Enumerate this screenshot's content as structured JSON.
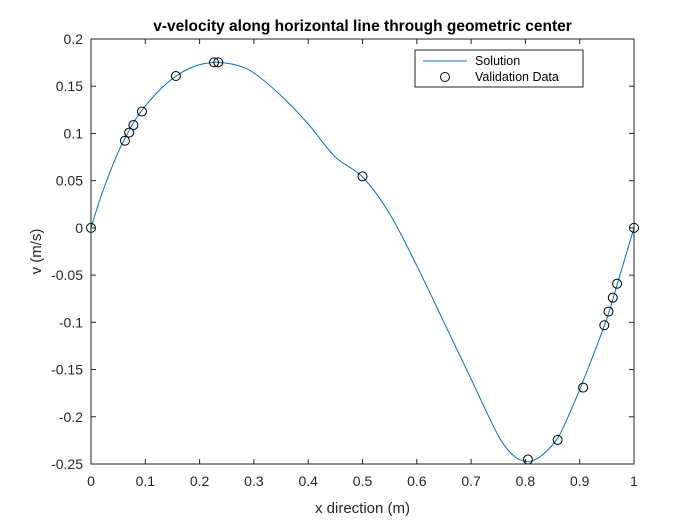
{
  "chart_data": {
    "type": "line",
    "title": "v-velocity along horizontal line through geometric center",
    "xlabel": "x direction (m)",
    "ylabel": "v (m/s)",
    "xlim": [
      0,
      1
    ],
    "ylim": [
      -0.25,
      0.2
    ],
    "x_ticks": [
      0,
      0.1,
      0.2,
      0.3,
      0.4,
      0.5,
      0.6,
      0.7,
      0.8,
      0.9,
      1
    ],
    "x_tick_labels": [
      "0",
      "0.1",
      "0.2",
      "0.3",
      "0.4",
      "0.5",
      "0.6",
      "0.7",
      "0.8",
      "0.9",
      "1"
    ],
    "y_ticks": [
      0.2,
      0.15,
      0.1,
      0.05,
      0,
      -0.05,
      -0.1,
      -0.15,
      -0.2,
      -0.25
    ],
    "y_tick_labels": [
      "0.2",
      "0.15",
      "0.1",
      "0.05",
      "0",
      "-0.05",
      "-0.1",
      "-0.15",
      "-0.2",
      "-0.25"
    ],
    "grid": false,
    "legend_position": "top-right",
    "series": [
      {
        "name": "Solution",
        "style": "line",
        "color": "#0072bd",
        "x": [
          0,
          0.02,
          0.05,
          0.08,
          0.1,
          0.13,
          0.16,
          0.19,
          0.22,
          0.24,
          0.27,
          0.3,
          0.35,
          0.4,
          0.45,
          0.5,
          0.55,
          0.6,
          0.65,
          0.7,
          0.75,
          0.78,
          0.8,
          0.81,
          0.83,
          0.86,
          0.89,
          0.92,
          0.95,
          0.97,
          1
        ],
        "y": [
          0,
          0.036,
          0.08,
          0.113,
          0.129,
          0.148,
          0.162,
          0.171,
          0.175,
          0.175,
          0.172,
          0.164,
          0.14,
          0.11,
          0.075,
          0.054,
          0.015,
          -0.04,
          -0.1,
          -0.16,
          -0.22,
          -0.242,
          -0.247,
          -0.247,
          -0.241,
          -0.222,
          -0.185,
          -0.142,
          -0.096,
          -0.058,
          0
        ]
      },
      {
        "name": "Validation Data",
        "style": "markers",
        "marker": "circle",
        "color": "#000000",
        "x": [
          0,
          0.0625,
          0.0703,
          0.0781,
          0.0938,
          0.1563,
          0.2266,
          0.2344,
          0.5,
          0.8047,
          0.8594,
          0.9063,
          0.9453,
          0.9531,
          0.9609,
          0.9688,
          1
        ],
        "y": [
          0,
          0.0923,
          0.1009,
          0.1089,
          0.1232,
          0.1608,
          0.1752,
          0.1753,
          0.0545,
          -0.2453,
          -0.2245,
          -0.1691,
          -0.1031,
          -0.0886,
          -0.0739,
          -0.0591,
          0
        ]
      }
    ]
  }
}
